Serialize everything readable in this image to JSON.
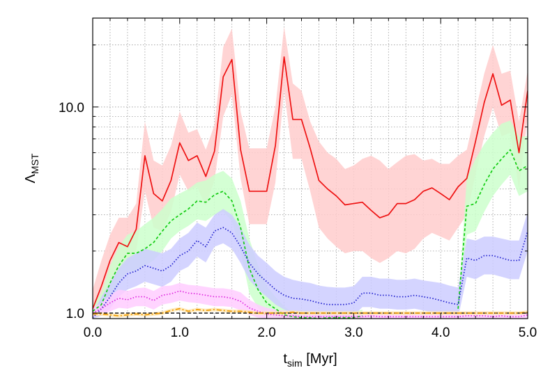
{
  "chart_data": {
    "type": "line",
    "xlabel": {
      "main": "t",
      "sub": "sim",
      "rest": " [Myr]"
    },
    "ylabel": {
      "main": "Λ",
      "sub": "MST"
    },
    "xlim": [
      0,
      5
    ],
    "ylim": [
      0.94,
      27
    ],
    "yscale": "log",
    "grid": true,
    "xticks": [
      0,
      1,
      2,
      3,
      4,
      5
    ],
    "xtick_labels": [
      "0.0",
      "1.0",
      "2.0",
      "3.0",
      "4.0",
      "5.0"
    ],
    "yticks": [
      1,
      10
    ],
    "ytick_labels": [
      "1.0",
      "10.0"
    ],
    "reference_line": {
      "y": 1.0,
      "color": "#000000",
      "dash": "dashed"
    },
    "series": [
      {
        "color": "#ee1111",
        "band_color": "#ffcccc",
        "dash": "solid",
        "x": [
          0.0,
          0.1,
          0.2,
          0.3,
          0.4,
          0.5,
          0.6,
          0.7,
          0.8,
          0.9,
          1.0,
          1.1,
          1.2,
          1.3,
          1.4,
          1.5,
          1.6,
          1.7,
          1.8,
          1.9,
          2.0,
          2.1,
          2.2,
          2.3,
          2.4,
          2.5,
          2.6,
          2.7,
          2.8,
          2.9,
          3.0,
          3.1,
          3.2,
          3.3,
          3.4,
          3.5,
          3.6,
          3.7,
          3.8,
          3.9,
          4.0,
          4.1,
          4.2,
          4.3,
          4.4,
          4.5,
          4.6,
          4.7,
          4.8,
          4.9,
          5.0
        ],
        "y": [
          1.05,
          1.35,
          1.8,
          2.2,
          2.1,
          2.55,
          5.8,
          3.8,
          3.5,
          4.4,
          6.7,
          5.5,
          5.8,
          4.6,
          6.1,
          14.0,
          17.0,
          6.2,
          3.9,
          3.9,
          3.9,
          6.5,
          17.5,
          8.7,
          8.7,
          6.3,
          4.4,
          4.0,
          3.7,
          3.35,
          3.4,
          3.45,
          3.15,
          2.9,
          3.0,
          3.4,
          3.4,
          3.55,
          3.9,
          4.05,
          3.8,
          3.55,
          4.1,
          4.5,
          6.8,
          10.5,
          14.5,
          10.2,
          10.8,
          6.0,
          12.0
        ],
        "upper": [
          1.3,
          1.8,
          2.4,
          2.9,
          2.9,
          3.4,
          8.5,
          5.5,
          5.2,
          6.5,
          9.5,
          7.5,
          7.8,
          6.2,
          8.2,
          19.5,
          24.0,
          9.5,
          6.3,
          6.3,
          6.3,
          10.0,
          24.5,
          13.0,
          12.0,
          8.5,
          6.8,
          6.0,
          5.6,
          5.0,
          5.2,
          5.6,
          5.8,
          5.5,
          5.0,
          5.4,
          5.8,
          5.9,
          5.5,
          5.6,
          5.3,
          5.3,
          5.8,
          6.2,
          9.5,
          14.5,
          20.0,
          14.5,
          15.0,
          8.5,
          15.0
        ],
        "lower": [
          0.98,
          1.05,
          1.25,
          1.6,
          1.7,
          2.0,
          3.9,
          2.6,
          2.5,
          3.1,
          4.7,
          3.9,
          4.1,
          3.3,
          4.4,
          9.0,
          11.5,
          4.5,
          2.7,
          2.7,
          2.7,
          4.3,
          12.0,
          5.6,
          5.6,
          3.9,
          2.6,
          2.3,
          2.1,
          1.95,
          2.0,
          2.0,
          1.85,
          1.75,
          1.85,
          2.0,
          1.95,
          2.05,
          2.3,
          2.45,
          2.35,
          2.25,
          2.6,
          3.0,
          4.7,
          7.2,
          10.0,
          7.2,
          7.5,
          4.0,
          9.0
        ]
      },
      {
        "color": "#11cc11",
        "band_color": "#ccffcc",
        "dash": "dashed",
        "x": [
          0.0,
          0.1,
          0.2,
          0.3,
          0.4,
          0.5,
          0.6,
          0.7,
          0.8,
          0.9,
          1.0,
          1.1,
          1.2,
          1.3,
          1.4,
          1.5,
          1.6,
          1.7,
          1.8,
          1.9,
          2.0,
          2.1,
          2.2,
          2.3,
          2.4,
          2.5,
          2.6,
          2.7,
          2.8,
          2.9,
          3.0,
          3.1
        ],
        "y": [
          1.02,
          1.1,
          1.4,
          1.7,
          1.95,
          1.95,
          2.05,
          2.2,
          2.5,
          2.8,
          3.0,
          3.2,
          3.5,
          3.45,
          3.75,
          3.9,
          3.5,
          2.6,
          1.65,
          1.3,
          1.12,
          1.05,
          0.98,
          0.96,
          0.95,
          0.95,
          0.94,
          0.95,
          0.95,
          0.95,
          0.95,
          0.97
        ],
        "upper": [
          1.1,
          1.25,
          1.7,
          2.1,
          2.4,
          2.5,
          2.7,
          2.9,
          3.2,
          3.6,
          3.8,
          4.0,
          4.3,
          4.4,
          4.7,
          4.9,
          4.5,
          3.5,
          2.3,
          1.7,
          1.35,
          1.2,
          1.08,
          1.0,
          0.98,
          0.97,
          0.97,
          0.98,
          0.98,
          0.99,
          1.01,
          1.04
        ],
        "lower": [
          0.96,
          0.98,
          1.15,
          1.4,
          1.6,
          1.6,
          1.7,
          1.8,
          2.0,
          2.3,
          2.5,
          2.65,
          2.85,
          2.8,
          3.0,
          3.1,
          2.8,
          2.0,
          1.25,
          1.06,
          0.97,
          0.95,
          0.94,
          0.94,
          0.94,
          0.94,
          0.94,
          0.94,
          0.94,
          0.94,
          0.94,
          0.94
        ]
      },
      {
        "color": "#11cc11",
        "band_color": "#ccffcc",
        "dash": "dashed",
        "x": [
          4.2,
          4.3,
          4.4,
          4.5,
          4.6,
          4.7,
          4.8,
          4.9,
          5.0
        ],
        "y": [
          1.05,
          3.3,
          3.4,
          4.2,
          5.0,
          5.6,
          6.2,
          4.9,
          5.2
        ],
        "upper": [
          1.1,
          4.5,
          5.6,
          6.6,
          7.5,
          8.3,
          8.6,
          7.2,
          7.2
        ],
        "lower": [
          1.0,
          2.4,
          2.5,
          3.1,
          3.7,
          4.2,
          4.7,
          3.7,
          3.9
        ]
      },
      {
        "color": "#1a1acc",
        "band_color": "#ccccff",
        "dash": "dotted",
        "x": [
          0.0,
          0.1,
          0.2,
          0.3,
          0.4,
          0.5,
          0.6,
          0.7,
          0.8,
          0.9,
          1.0,
          1.1,
          1.2,
          1.3,
          1.4,
          1.5,
          1.6,
          1.7,
          1.8,
          1.9,
          2.0,
          2.1,
          2.2,
          2.3,
          2.4,
          2.5,
          2.6,
          2.7,
          2.8,
          2.9,
          3.0,
          3.1,
          3.2,
          3.3,
          3.4,
          3.5,
          3.6,
          3.7,
          3.8,
          3.9,
          4.0,
          4.1,
          4.2,
          4.3,
          4.4,
          4.5,
          4.6,
          4.7,
          4.8,
          4.9,
          5.0
        ],
        "y": [
          0.95,
          1.05,
          1.2,
          1.4,
          1.55,
          1.6,
          1.7,
          1.65,
          1.6,
          1.7,
          1.9,
          2.0,
          2.25,
          2.1,
          2.5,
          2.6,
          2.45,
          2.1,
          1.75,
          1.55,
          1.42,
          1.3,
          1.22,
          1.18,
          1.17,
          1.15,
          1.12,
          1.1,
          1.1,
          1.1,
          1.12,
          1.25,
          1.25,
          1.22,
          1.22,
          1.2,
          1.2,
          1.22,
          1.2,
          1.18,
          1.15,
          1.12,
          1.1,
          1.85,
          1.8,
          1.9,
          1.9,
          1.85,
          1.8,
          1.8,
          2.5
        ],
        "upper": [
          1.0,
          1.2,
          1.4,
          1.65,
          1.85,
          1.95,
          2.05,
          2.0,
          1.95,
          2.05,
          2.3,
          2.45,
          2.75,
          2.6,
          3.0,
          3.2,
          3.0,
          2.6,
          2.15,
          1.9,
          1.75,
          1.6,
          1.5,
          1.45,
          1.42,
          1.4,
          1.36,
          1.34,
          1.33,
          1.33,
          1.35,
          1.5,
          1.5,
          1.47,
          1.47,
          1.45,
          1.45,
          1.47,
          1.44,
          1.42,
          1.4,
          1.36,
          1.33,
          2.3,
          2.25,
          2.35,
          2.35,
          2.3,
          2.25,
          2.25,
          3.1
        ],
        "lower": [
          0.94,
          0.97,
          1.05,
          1.2,
          1.3,
          1.35,
          1.42,
          1.38,
          1.34,
          1.42,
          1.6,
          1.68,
          1.88,
          1.76,
          2.1,
          2.18,
          2.05,
          1.75,
          1.45,
          1.3,
          1.2,
          1.1,
          1.04,
          1.0,
          0.99,
          0.98,
          0.96,
          0.95,
          0.95,
          0.95,
          0.97,
          1.07,
          1.07,
          1.05,
          1.05,
          1.04,
          1.04,
          1.05,
          1.03,
          1.01,
          0.99,
          0.97,
          0.95,
          1.5,
          1.46,
          1.54,
          1.54,
          1.5,
          1.46,
          1.46,
          2.0
        ]
      },
      {
        "color": "#dd22dd",
        "band_color": "#ffccff",
        "dash": "dotted",
        "x": [
          0.0,
          0.1,
          0.2,
          0.3,
          0.4,
          0.5,
          0.6,
          0.7,
          0.8,
          0.9,
          1.0,
          1.1,
          1.2,
          1.3,
          1.4,
          1.5,
          1.6,
          1.7,
          1.8,
          1.9,
          2.0,
          2.1,
          2.2,
          2.3,
          2.4,
          2.5,
          2.6,
          2.7,
          2.8,
          2.9,
          3.0,
          3.1,
          3.2,
          3.3,
          3.4,
          3.5,
          3.6,
          3.7,
          3.8,
          3.9,
          4.0,
          4.1,
          4.2,
          4.3,
          4.4,
          4.5,
          4.6,
          4.7,
          4.8,
          4.9,
          5.0
        ],
        "y": [
          1.0,
          1.05,
          1.12,
          1.18,
          1.16,
          1.2,
          1.2,
          1.15,
          1.22,
          1.24,
          1.28,
          1.25,
          1.24,
          1.22,
          1.2,
          1.2,
          1.18,
          1.14,
          1.06,
          1.02,
          0.99,
          0.98,
          0.97,
          0.97,
          0.96,
          0.96,
          0.96,
          0.96,
          0.96,
          0.96,
          0.96,
          0.96,
          0.97,
          0.96,
          0.96,
          0.96,
          0.96,
          0.96,
          0.96,
          0.96,
          0.96,
          0.96,
          0.96,
          0.97,
          0.97,
          0.97,
          0.96,
          0.97,
          0.96,
          0.96,
          0.98
        ],
        "upper": [
          1.06,
          1.12,
          1.22,
          1.3,
          1.28,
          1.32,
          1.33,
          1.28,
          1.35,
          1.36,
          1.4,
          1.37,
          1.36,
          1.34,
          1.32,
          1.32,
          1.3,
          1.26,
          1.16,
          1.1,
          1.06,
          1.04,
          1.03,
          1.02,
          1.01,
          1.01,
          1.01,
          1.01,
          1.01,
          1.01,
          1.01,
          1.01,
          1.02,
          1.01,
          1.01,
          1.01,
          1.01,
          1.01,
          1.01,
          1.01,
          1.01,
          1.01,
          1.01,
          1.02,
          1.02,
          1.02,
          1.01,
          1.02,
          1.01,
          1.01,
          1.03
        ],
        "lower": [
          0.96,
          0.98,
          1.02,
          1.06,
          1.05,
          1.08,
          1.08,
          1.04,
          1.1,
          1.12,
          1.15,
          1.13,
          1.12,
          1.1,
          1.08,
          1.08,
          1.07,
          1.03,
          0.98,
          0.95,
          0.94,
          0.94,
          0.94,
          0.94,
          0.94,
          0.94,
          0.94,
          0.94,
          0.94,
          0.94,
          0.94,
          0.94,
          0.94,
          0.94,
          0.94,
          0.94,
          0.94,
          0.94,
          0.94,
          0.94,
          0.94,
          0.94,
          0.94,
          0.94,
          0.94,
          0.94,
          0.94,
          0.94,
          0.94,
          0.94,
          0.94
        ]
      },
      {
        "color": "#ee9900",
        "band_color": "#ffe8b3",
        "dash": "dashdot",
        "x": [
          0.0,
          0.1,
          0.2,
          0.3,
          0.4,
          0.5,
          0.6,
          0.7,
          0.8,
          0.9,
          1.0,
          1.1,
          1.2,
          1.3,
          1.4,
          1.5,
          1.6,
          1.7,
          1.8,
          1.9,
          2.0,
          2.1,
          2.2,
          2.3,
          2.4,
          2.5,
          2.6,
          2.7,
          2.8,
          2.9,
          3.0,
          3.1,
          3.2,
          3.3,
          3.4,
          3.5,
          3.6,
          3.7,
          3.8,
          3.9,
          4.0,
          4.1,
          4.2,
          4.3,
          4.4,
          4.5,
          4.6,
          4.7,
          4.8,
          4.9,
          5.0
        ],
        "y": [
          0.99,
          0.99,
          0.98,
          0.97,
          0.98,
          0.99,
          0.98,
          0.99,
          1.0,
          1.03,
          1.05,
          1.02,
          1.04,
          1.03,
          1.04,
          1.03,
          1.02,
          1.02,
          1.01,
          1.0,
          1.0,
          1.0,
          1.0,
          1.01,
          1.0,
          1.0,
          1.0,
          1.0,
          1.0,
          1.0,
          1.0,
          1.0,
          1.0,
          1.0,
          1.0,
          1.0,
          1.0,
          1.0,
          1.0,
          1.0,
          1.0,
          1.0,
          1.0,
          1.0,
          1.0,
          1.0,
          1.0,
          1.0,
          1.0,
          1.0,
          1.01
        ],
        "upper": [
          1.01,
          1.01,
          1.0,
          0.99,
          1.0,
          1.01,
          1.0,
          1.01,
          1.02,
          1.05,
          1.07,
          1.04,
          1.06,
          1.05,
          1.06,
          1.05,
          1.04,
          1.04,
          1.03,
          1.02,
          1.02,
          1.02,
          1.02,
          1.03,
          1.02,
          1.02,
          1.02,
          1.02,
          1.02,
          1.02,
          1.02,
          1.02,
          1.02,
          1.02,
          1.02,
          1.02,
          1.02,
          1.02,
          1.02,
          1.02,
          1.02,
          1.02,
          1.02,
          1.02,
          1.02,
          1.02,
          1.02,
          1.02,
          1.02,
          1.02,
          1.03
        ],
        "lower": [
          0.97,
          0.97,
          0.96,
          0.95,
          0.96,
          0.97,
          0.96,
          0.97,
          0.98,
          1.01,
          1.03,
          1.0,
          1.02,
          1.01,
          1.02,
          1.01,
          1.0,
          1.0,
          0.99,
          0.98,
          0.98,
          0.98,
          0.98,
          0.99,
          0.98,
          0.98,
          0.98,
          0.98,
          0.98,
          0.98,
          0.98,
          0.98,
          0.98,
          0.98,
          0.98,
          0.98,
          0.98,
          0.98,
          0.98,
          0.98,
          0.98,
          0.98,
          0.98,
          0.98,
          0.98,
          0.98,
          0.98,
          0.98,
          0.98,
          0.98,
          0.99
        ]
      }
    ]
  }
}
